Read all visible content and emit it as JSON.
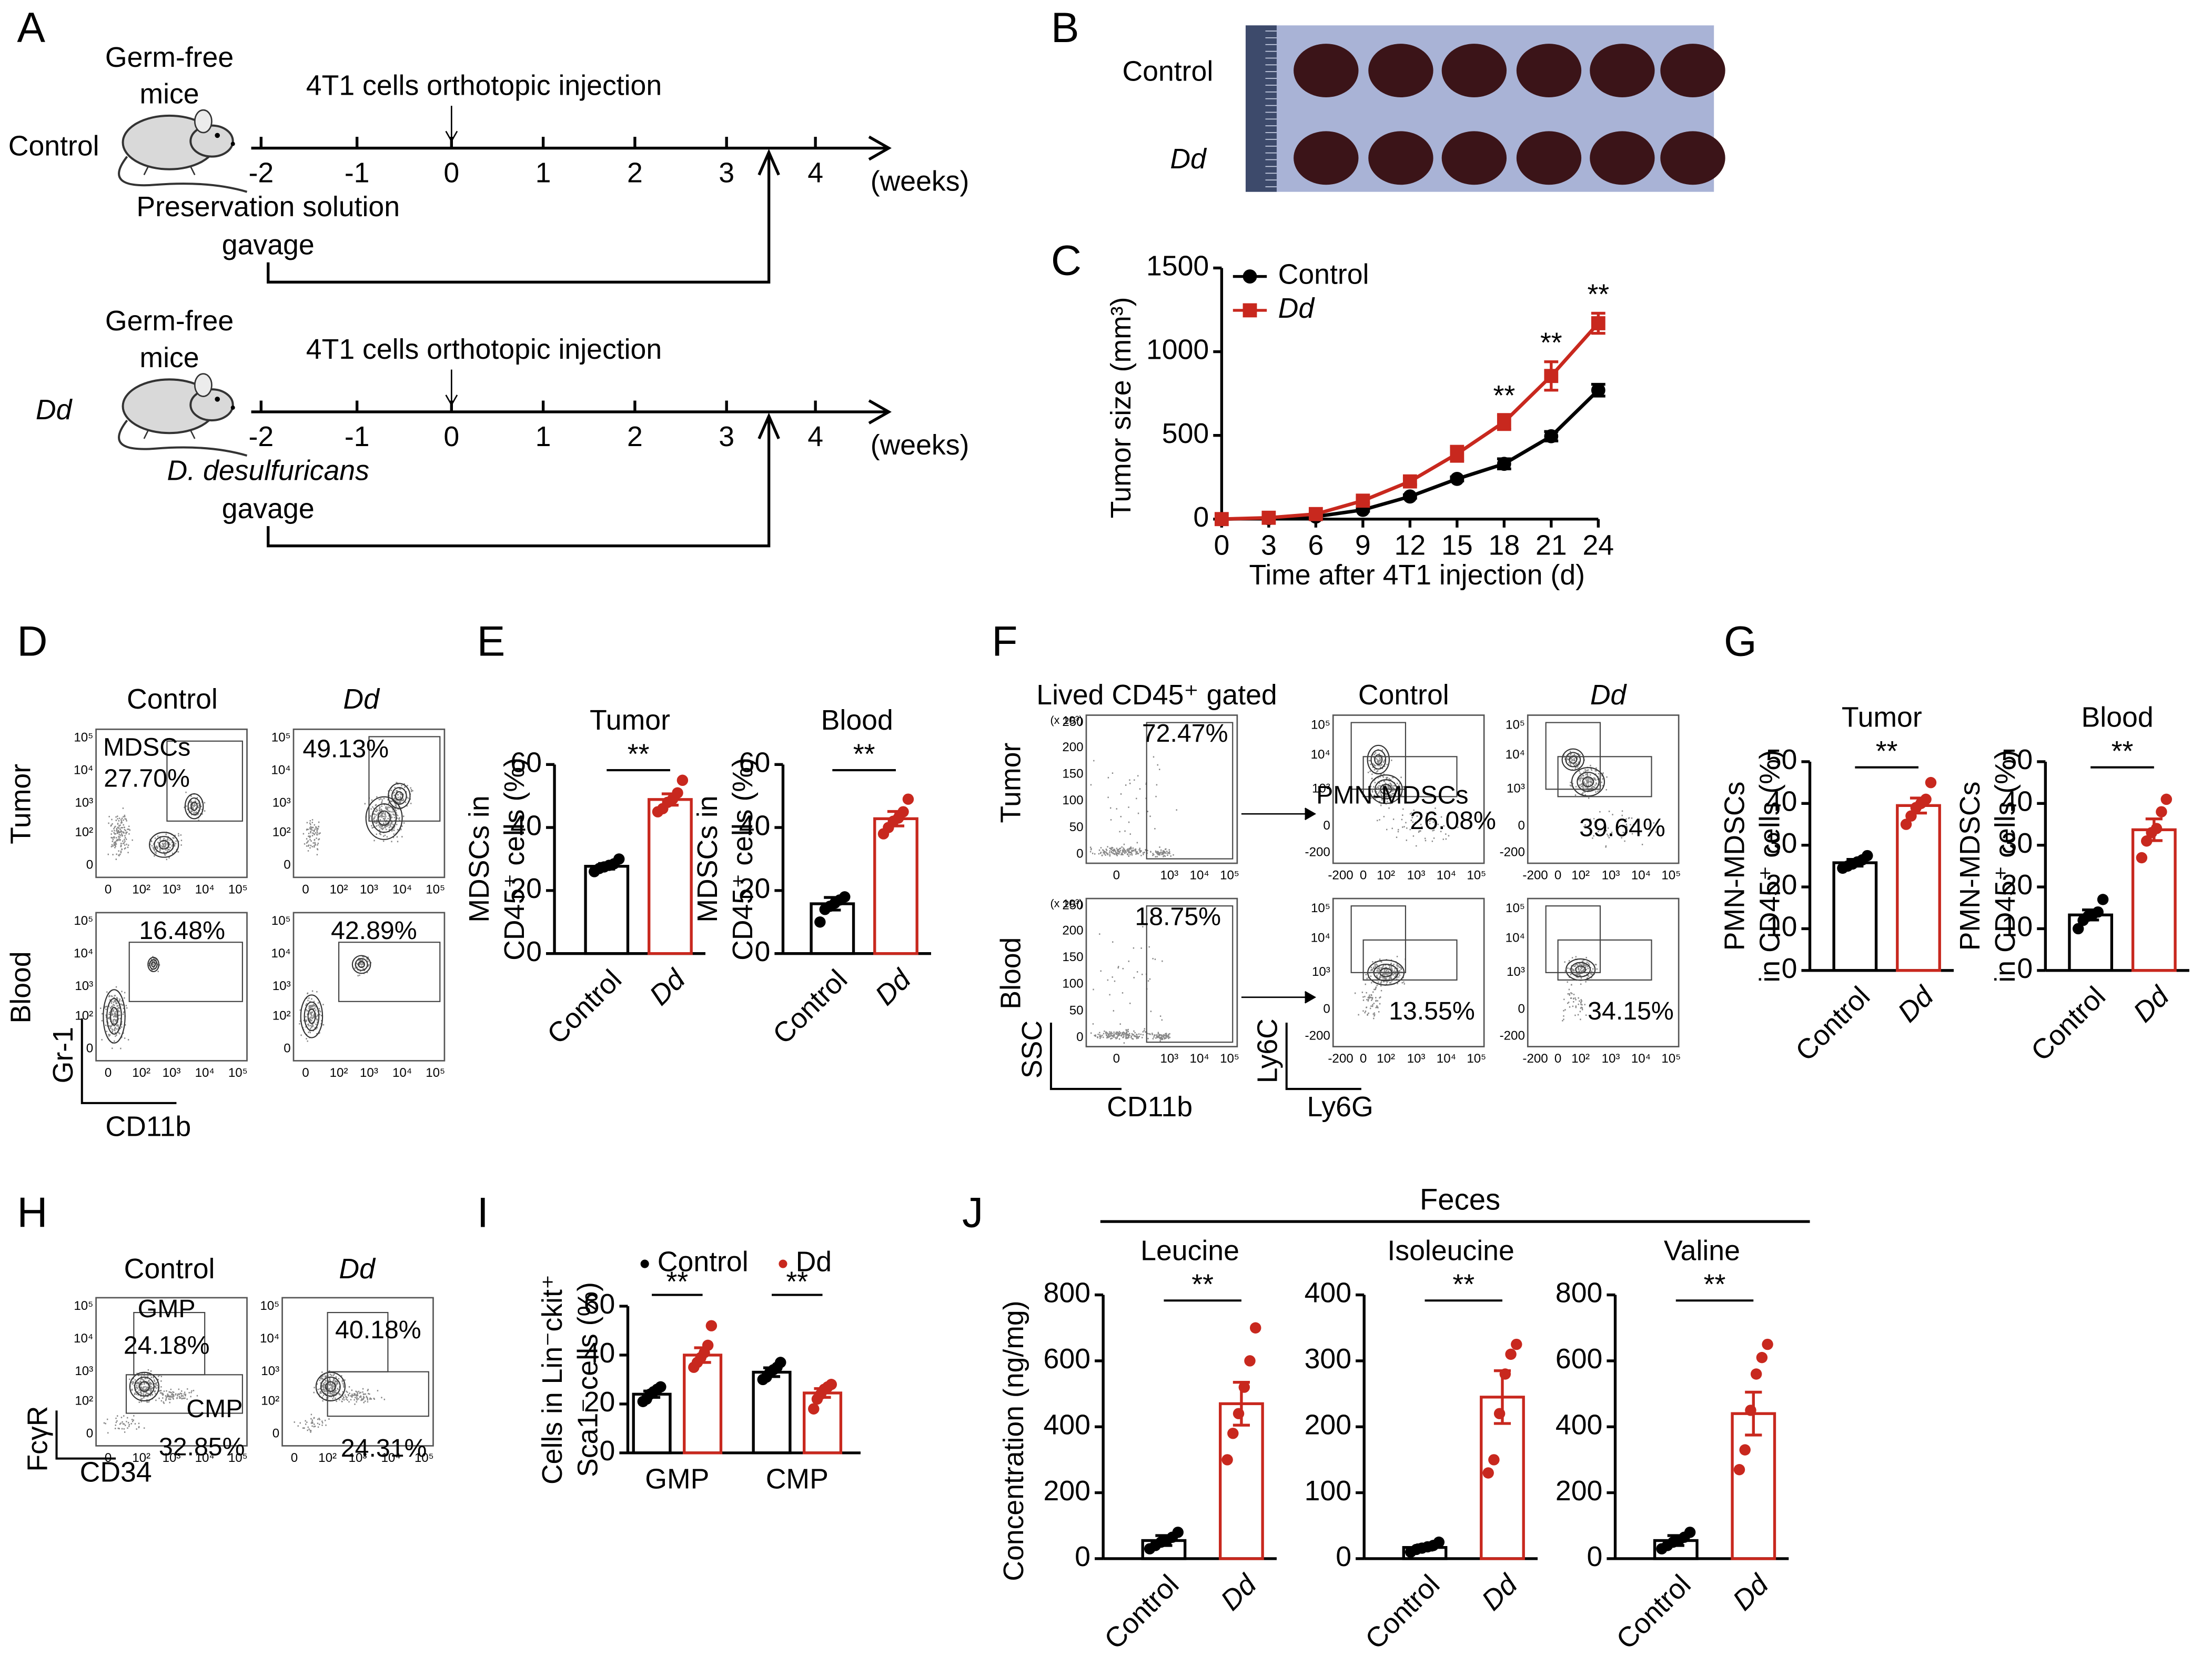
{
  "panel_labels": [
    "A",
    "B",
    "C",
    "D",
    "E",
    "F",
    "G",
    "H",
    "I",
    "J"
  ],
  "schematic": {
    "timeline_ticks": [
      -2,
      -1,
      0,
      1,
      2,
      3,
      4
    ],
    "groups": [
      {
        "name": "Control",
        "mouse": [
          "Germ-free",
          "mice"
        ],
        "injection": "4T1 cells orthotopic injection",
        "unit": "(weeks)",
        "gavage": [
          "Preservation solution",
          "gavage"
        ]
      },
      {
        "name": "Dd",
        "mouse": [
          "Germ-free",
          "mice"
        ],
        "injection": "4T1 cells orthotopic injection",
        "unit": "(weeks)",
        "gavage": [
          "D. desulfuricans",
          "gavage"
        ]
      }
    ]
  },
  "photo": {
    "rows": [
      "Control",
      "Dd"
    ]
  },
  "flow_D": {
    "columns": [
      "Control",
      "Dd"
    ],
    "rows": [
      "Tumor",
      "Blood"
    ],
    "gate_name": "MDSCs",
    "gates": [
      [
        "27.70%",
        "49.13%"
      ],
      [
        "16.48%",
        "42.89%"
      ]
    ],
    "xlabel": "CD11b",
    "ylabel": "Gr-1",
    "ticks": [
      "0",
      "10²",
      "10³",
      "10⁴",
      "10⁵"
    ]
  },
  "flow_F": {
    "header": "Lived CD45⁺ gated",
    "columns": [
      "Control",
      "Dd"
    ],
    "rows": [
      "Tumor",
      "Blood"
    ],
    "left_gates": [
      "72.47%",
      "18.75%"
    ],
    "gate_name": "PMN-MDSCs",
    "gates": [
      [
        "26.08%",
        "39.64%"
      ],
      [
        "13.55%",
        "34.15%"
      ]
    ],
    "left_xlabel": "CD11b",
    "left_ylabel": "SSC",
    "left_scale": "(x 10³)",
    "left_yticks": [
      "250",
      "200",
      "150",
      "100",
      "50",
      "0"
    ],
    "left_xticks": [
      "0",
      "10³",
      "10⁴",
      "10⁵"
    ],
    "xlabel": "Ly6G",
    "ylabel": "Ly6C",
    "yticks": [
      "10⁵",
      "10⁴",
      "10³",
      "0",
      "-200"
    ],
    "xticks": [
      "-200",
      "0",
      "10²",
      "10³",
      "10⁴",
      "10⁵"
    ]
  },
  "flow_H": {
    "columns": [
      "Control",
      "Dd"
    ],
    "gate_names": [
      "GMP",
      "CMP"
    ],
    "gates": [
      [
        "24.18%",
        "32.85%"
      ],
      [
        "40.18%",
        "24.31%"
      ]
    ],
    "xlabel": "CD34",
    "ylabel": "FcγR",
    "ticks": [
      "0",
      "10²",
      "10³",
      "10⁴",
      "10⁵"
    ]
  },
  "J_header": "Feces",
  "chart_data": [
    {
      "type": "line",
      "xlabel": "Time after 4T1 injection (d)",
      "ylabel": "Tumor size (mm³)",
      "x": [
        0,
        3,
        6,
        9,
        12,
        15,
        18,
        21,
        24
      ],
      "xlim": [
        0,
        24
      ],
      "xticks": [
        0,
        3,
        6,
        9,
        12,
        15,
        18,
        21,
        24
      ],
      "ylim": [
        0,
        1500
      ],
      "yticks": [
        0,
        500,
        1000,
        1500
      ],
      "legend": "upper left",
      "series": [
        {
          "name": "Control",
          "color": "#000000",
          "marker": "circle",
          "values": [
            0,
            5,
            15,
            55,
            135,
            240,
            330,
            495,
            770
          ],
          "errors": [
            0,
            3,
            5,
            8,
            10,
            12,
            30,
            28,
            35
          ]
        },
        {
          "name": "Dd",
          "color": "#c8281e",
          "marker": "square",
          "values": [
            0,
            8,
            30,
            110,
            225,
            390,
            580,
            855,
            1170
          ],
          "errors": [
            0,
            5,
            8,
            15,
            20,
            45,
            45,
            85,
            60
          ]
        }
      ],
      "annotations": [
        {
          "x": 18,
          "text": "**"
        },
        {
          "x": 21,
          "text": "**"
        },
        {
          "x": 24,
          "text": "**"
        }
      ]
    },
    {
      "type": "bar",
      "title": "Tumor",
      "ylabel_lines": [
        "MDSCs in",
        "CD45⁺ cells (%)"
      ],
      "categories": [
        "Control",
        "Dd"
      ],
      "colors": [
        "#000000",
        "#c8281e"
      ],
      "values": [
        27.7,
        48.9
      ],
      "errors": [
        0.9,
        1.8
      ],
      "points": [
        [
          26,
          27,
          27.5,
          28,
          28.5,
          30
        ],
        [
          45,
          46,
          48,
          49,
          51,
          55
        ]
      ],
      "ylim": [
        0,
        60
      ],
      "yticks": [
        0,
        20,
        40,
        60
      ],
      "significance": "**"
    },
    {
      "type": "bar",
      "title": "Blood",
      "ylabel_lines": [
        "MDSCs in",
        "CD45⁺ cells (%)"
      ],
      "categories": [
        "Control",
        "Dd"
      ],
      "colors": [
        "#000000",
        "#c8281e"
      ],
      "values": [
        15.8,
        42.8
      ],
      "errors": [
        2,
        2.3
      ],
      "points": [
        [
          10,
          14,
          15,
          16,
          17,
          18
        ],
        [
          38,
          40,
          42,
          43,
          45,
          49
        ]
      ],
      "ylim": [
        0,
        60
      ],
      "yticks": [
        0,
        20,
        40,
        60
      ],
      "significance": "**"
    },
    {
      "type": "bar",
      "title": "Tumor",
      "ylabel_lines": [
        "PMN-MDSCs",
        "in CD45⁺ cells (%)"
      ],
      "categories": [
        "Control",
        "Dd"
      ],
      "colors": [
        "#000000",
        "#c8281e"
      ],
      "values": [
        25.8,
        39.5
      ],
      "errors": [
        0.8,
        1.8
      ],
      "points": [
        [
          24.5,
          25,
          25.5,
          26,
          26.5,
          27.5
        ],
        [
          35,
          37,
          39,
          40,
          41,
          45
        ]
      ],
      "ylim": [
        0,
        50
      ],
      "yticks": [
        0,
        10,
        20,
        30,
        40,
        50
      ],
      "significance": "**"
    },
    {
      "type": "bar",
      "title": "Blood",
      "ylabel_lines": [
        "PMN-MDSCs",
        "in CD45⁺ cells (%)"
      ],
      "categories": [
        "Control",
        "Dd"
      ],
      "colors": [
        "#000000",
        "#c8281e"
      ],
      "values": [
        13.3,
        33.7
      ],
      "errors": [
        1.2,
        2.6
      ],
      "points": [
        [
          10,
          12,
          13,
          13.5,
          14,
          17
        ],
        [
          27,
          31,
          33,
          34,
          38,
          41
        ]
      ],
      "ylim": [
        0,
        50
      ],
      "yticks": [
        0,
        10,
        20,
        30,
        40,
        50
      ],
      "significance": "**"
    },
    {
      "type": "bar",
      "ylabel_lines": [
        "Cells in Lin⁻ckit⁺",
        "Sca1⁻ cells (%)"
      ],
      "categories": [
        "GMP",
        "CMP"
      ],
      "series": [
        {
          "name": "Control",
          "color": "#000000",
          "values": [
            24,
            33
          ],
          "errors": [
            1.3,
            1.8
          ],
          "points": [
            [
              21,
              22,
              24,
              25,
              26,
              27
            ],
            [
              30,
              31,
              33,
              34,
              35,
              37
            ]
          ]
        },
        {
          "name": "Dd",
          "color": "#c8281e",
          "values": [
            40,
            24.5
          ],
          "errors": [
            3,
            1.8
          ],
          "points": [
            [
              35,
              37,
              39,
              41,
              44,
              52
            ],
            [
              18,
              22,
              24,
              26,
              27,
              28
            ]
          ]
        }
      ],
      "ylim": [
        0,
        60
      ],
      "yticks": [
        0,
        20,
        40,
        60
      ],
      "significance": [
        "**",
        "**"
      ]
    },
    {
      "type": "bar",
      "title": "Leucine",
      "ylabel": "Concentration (ng/mg)",
      "categories": [
        "Control",
        "Dd"
      ],
      "colors": [
        "#000000",
        "#c8281e"
      ],
      "values": [
        55,
        470
      ],
      "errors": [
        15,
        65
      ],
      "points": [
        [
          30,
          40,
          50,
          55,
          65,
          80
        ],
        [
          300,
          380,
          440,
          520,
          600,
          700
        ]
      ],
      "ylim": [
        0,
        800
      ],
      "yticks": [
        0,
        200,
        400,
        600,
        800
      ],
      "significance": "**"
    },
    {
      "type": "bar",
      "title": "Isoleucine",
      "categories": [
        "Control",
        "Dd"
      ],
      "colors": [
        "#000000",
        "#c8281e"
      ],
      "values": [
        17,
        245
      ],
      "errors": [
        4,
        40
      ],
      "points": [
        [
          10,
          14,
          16,
          18,
          20,
          25
        ],
        [
          130,
          150,
          220,
          280,
          310,
          325
        ]
      ],
      "ylim": [
        0,
        400
      ],
      "yticks": [
        0,
        100,
        200,
        300,
        400
      ],
      "significance": "**"
    },
    {
      "type": "bar",
      "title": "Valine",
      "categories": [
        "Control",
        "Dd"
      ],
      "colors": [
        "#000000",
        "#c8281e"
      ],
      "values": [
        55,
        440
      ],
      "errors": [
        15,
        65
      ],
      "points": [
        [
          30,
          40,
          50,
          55,
          65,
          80
        ],
        [
          270,
          330,
          450,
          560,
          610,
          650
        ]
      ],
      "ylim": [
        0,
        800
      ],
      "yticks": [
        0,
        200,
        400,
        600,
        800
      ],
      "significance": "**"
    }
  ]
}
